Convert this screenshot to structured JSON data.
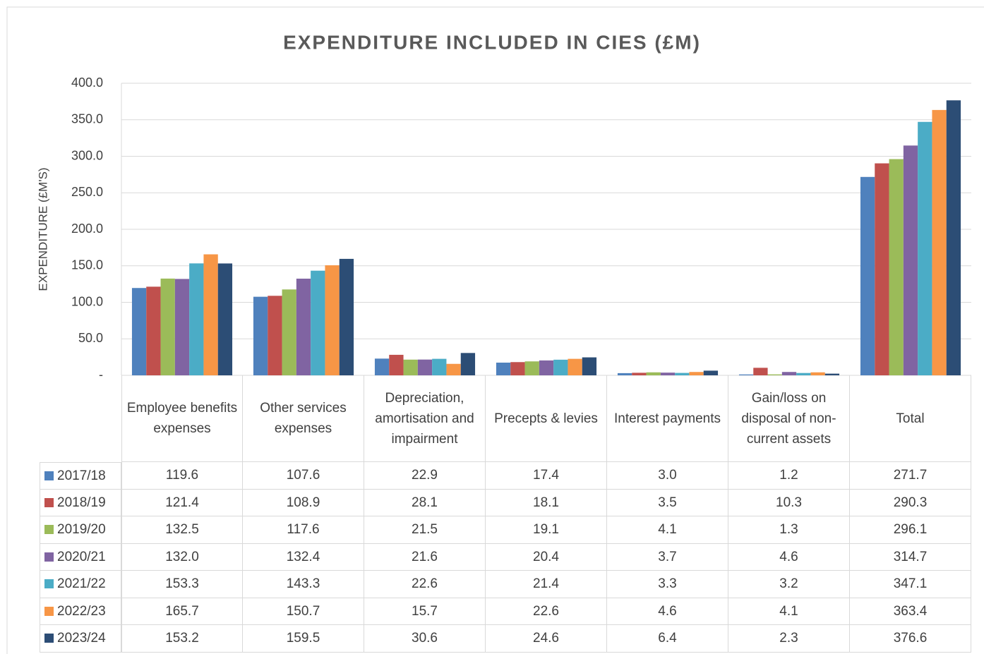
{
  "chart_data": {
    "type": "bar",
    "title": "EXPENDITURE INCLUDED IN CIES (£M)",
    "y_label": "EXPENDITURE (£M'S)",
    "categories": [
      "Employee benefits expenses",
      "Other services expenses",
      "Depreciation, amortisation and impairment",
      "Precepts & levies",
      "Interest payments",
      "Gain/loss on disposal of non-current assets",
      "Total"
    ],
    "series": [
      {
        "name": "2017/18",
        "color": "#4f81bd",
        "values": [
          119.6,
          107.6,
          22.9,
          17.4,
          3.0,
          1.2,
          271.7
        ],
        "value_labels": [
          "119.6",
          "107.6",
          "22.9",
          "17.4",
          "3.0",
          "1.2",
          "271.7"
        ]
      },
      {
        "name": "2018/19",
        "color": "#c0504d",
        "values": [
          121.4,
          108.9,
          28.1,
          18.1,
          3.5,
          10.3,
          290.3
        ],
        "value_labels": [
          "121.4",
          "108.9",
          "28.1",
          "18.1",
          "3.5",
          "10.3",
          "290.3"
        ]
      },
      {
        "name": "2019/20",
        "color": "#9bbb59",
        "values": [
          132.5,
          117.6,
          21.5,
          19.1,
          4.1,
          1.3,
          296.1
        ],
        "value_labels": [
          "132.5",
          "117.6",
          "21.5",
          "19.1",
          "4.1",
          "1.3",
          "296.1"
        ]
      },
      {
        "name": "2020/21",
        "color": "#8064a2",
        "values": [
          132.0,
          132.4,
          21.6,
          20.4,
          3.7,
          4.6,
          314.7
        ],
        "value_labels": [
          "132.0",
          "132.4",
          "21.6",
          "20.4",
          "3.7",
          "4.6",
          "314.7"
        ]
      },
      {
        "name": "2021/22",
        "color": "#4bacc6",
        "values": [
          153.3,
          143.3,
          22.6,
          21.4,
          3.3,
          3.2,
          347.1
        ],
        "value_labels": [
          "153.3",
          "143.3",
          "22.6",
          "21.4",
          "3.3",
          "3.2",
          "347.1"
        ]
      },
      {
        "name": "2022/23",
        "color": "#f79646",
        "values": [
          165.7,
          150.7,
          15.7,
          22.6,
          4.6,
          4.1,
          363.4
        ],
        "value_labels": [
          "165.7",
          "150.7",
          "15.7",
          "22.6",
          "4.6",
          "4.1",
          "363.4"
        ]
      },
      {
        "name": "2023/24",
        "color": "#2c4d75",
        "values": [
          153.2,
          159.5,
          30.6,
          24.6,
          6.4,
          2.3,
          376.6
        ],
        "value_labels": [
          "153.2",
          "159.5",
          "30.6",
          "24.6",
          "6.4",
          "2.3",
          "376.6"
        ]
      }
    ],
    "ylim": [
      0,
      400
    ],
    "yticks": [
      {
        "value": 0,
        "label": "-"
      },
      {
        "value": 50,
        "label": "50.0"
      },
      {
        "value": 100,
        "label": "100.0"
      },
      {
        "value": 150,
        "label": "150.0"
      },
      {
        "value": 200,
        "label": "200.0"
      },
      {
        "value": 250,
        "label": "250.0"
      },
      {
        "value": 300,
        "label": "300.0"
      },
      {
        "value": 350,
        "label": "350.0"
      },
      {
        "value": 400,
        "label": "400.0"
      }
    ],
    "grid": true
  }
}
